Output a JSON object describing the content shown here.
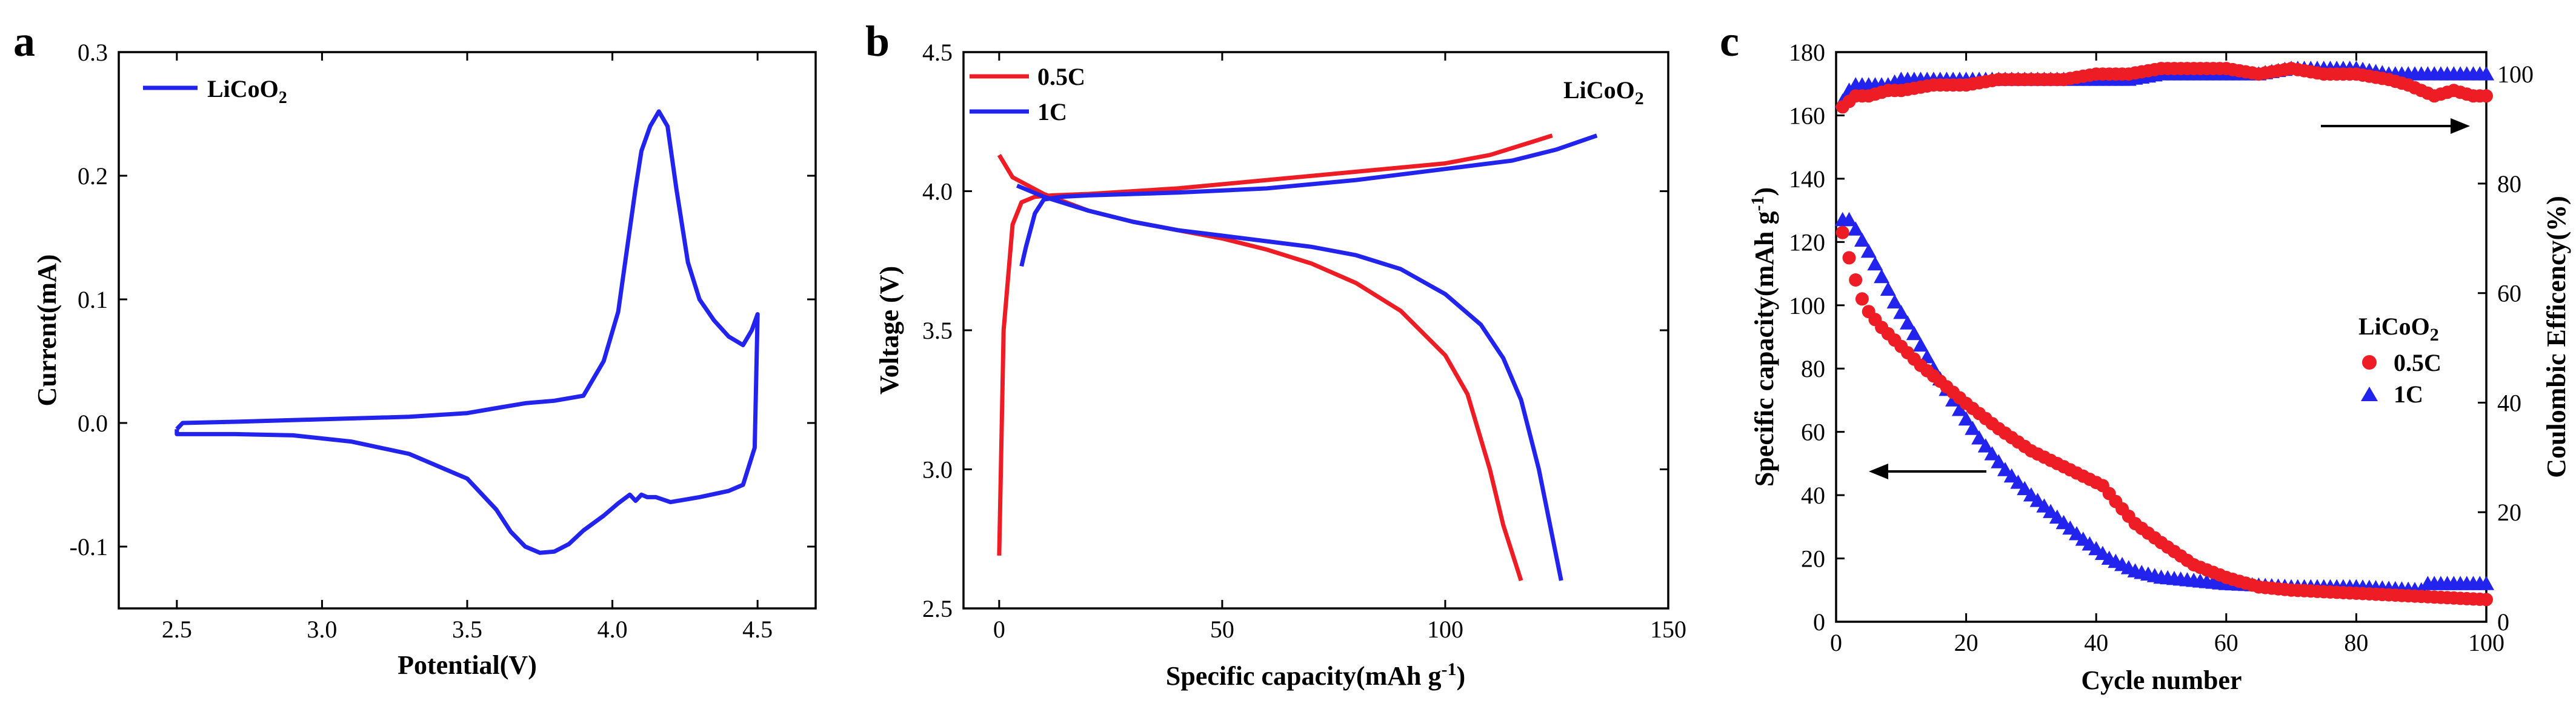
{
  "colors": {
    "red": "#ee1c25",
    "blue": "#2323ee",
    "axis": "#000000"
  },
  "chart_data": [
    {
      "panel": "a",
      "type": "line",
      "xlabel": "Potential(V)",
      "ylabel": "Current(mA)",
      "xlim": [
        2.3,
        4.7
      ],
      "ylim": [
        -0.15,
        0.3
      ],
      "xticks": [
        2.5,
        3.0,
        3.5,
        4.0,
        4.5
      ],
      "xtick_labels": [
        "2.5",
        "3.0",
        "3.5",
        "4.0",
        "4.5"
      ],
      "yticks": [
        -0.1,
        0.0,
        0.1,
        0.2,
        0.3
      ],
      "ytick_labels": [
        "-0.1",
        "0.0",
        "0.1",
        "0.2",
        "0.3"
      ],
      "legend": [
        "LiCoO2"
      ],
      "legend_base": "LiCoO",
      "legend_sub": "2",
      "series": [
        {
          "name": "LiCoO2",
          "color": "blue",
          "x": [
            2.5,
            2.52,
            2.7,
            3.0,
            3.3,
            3.5,
            3.6,
            3.7,
            3.8,
            3.9,
            3.97,
            4.02,
            4.05,
            4.08,
            4.1,
            4.13,
            4.16,
            4.19,
            4.22,
            4.26,
            4.3,
            4.35,
            4.4,
            4.45,
            4.48,
            4.5,
            4.49,
            4.45,
            4.4,
            4.3,
            4.2,
            4.15,
            4.12,
            4.1,
            4.08,
            4.06,
            4.02,
            3.97,
            3.9,
            3.85,
            3.8,
            3.75,
            3.7,
            3.65,
            3.6,
            3.5,
            3.3,
            3.1,
            2.9,
            2.7,
            2.5,
            2.5
          ],
          "y": [
            -0.005,
            0.0,
            0.001,
            0.003,
            0.005,
            0.008,
            0.012,
            0.016,
            0.018,
            0.022,
            0.05,
            0.09,
            0.14,
            0.19,
            0.22,
            0.24,
            0.252,
            0.24,
            0.19,
            0.13,
            0.1,
            0.083,
            0.07,
            0.063,
            0.075,
            0.088,
            -0.02,
            -0.05,
            -0.055,
            -0.06,
            -0.064,
            -0.06,
            -0.06,
            -0.058,
            -0.063,
            -0.058,
            -0.065,
            -0.075,
            -0.087,
            -0.098,
            -0.104,
            -0.105,
            -0.1,
            -0.088,
            -0.07,
            -0.045,
            -0.025,
            -0.015,
            -0.01,
            -0.009,
            -0.009,
            -0.005
          ]
        }
      ]
    },
    {
      "panel": "b",
      "type": "line",
      "xlabel": "Specific capacity(mAh g-1)",
      "xlabel_base": "Specific capacity(mAh g",
      "xlabel_sup": "-1",
      "xlabel_end": ")",
      "ylabel": "Voltage (V)",
      "xlim": [
        -8,
        150
      ],
      "ylim": [
        2.5,
        4.5
      ],
      "xticks": [
        0,
        50,
        100,
        150
      ],
      "xtick_labels": [
        "0",
        "50",
        "100",
        "150"
      ],
      "yticks": [
        2.5,
        3.0,
        3.5,
        4.0,
        4.5
      ],
      "ytick_labels": [
        "2.5",
        "3.0",
        "3.5",
        "4.0",
        "4.5"
      ],
      "annotation_base": "LiCoO",
      "annotation_sub": "2",
      "legend": [
        "0.5C",
        "1C"
      ],
      "series": [
        {
          "name": "0.5C charge",
          "color": "red",
          "x": [
            0,
            1,
            3,
            5,
            8,
            12,
            20,
            40,
            60,
            80,
            100,
            110,
            118,
            124
          ],
          "y": [
            2.69,
            3.5,
            3.88,
            3.96,
            3.98,
            3.985,
            3.99,
            4.01,
            4.04,
            4.07,
            4.1,
            4.13,
            4.17,
            4.2
          ]
        },
        {
          "name": "0.5C discharge",
          "color": "red",
          "x": [
            0,
            3,
            10,
            20,
            30,
            40,
            50,
            60,
            70,
            80,
            90,
            100,
            105,
            110,
            113,
            117
          ],
          "y": [
            4.13,
            4.05,
            3.99,
            3.93,
            3.89,
            3.86,
            3.83,
            3.79,
            3.74,
            3.67,
            3.57,
            3.41,
            3.27,
            3.0,
            2.8,
            2.6
          ]
        },
        {
          "name": "1C charge",
          "color": "blue",
          "x": [
            5,
            6,
            8,
            10,
            14,
            20,
            40,
            60,
            80,
            100,
            115,
            125,
            134
          ],
          "y": [
            3.73,
            3.8,
            3.92,
            3.97,
            3.98,
            3.985,
            3.995,
            4.01,
            4.04,
            4.08,
            4.11,
            4.15,
            4.2
          ]
        },
        {
          "name": "1C discharge",
          "color": "blue",
          "x": [
            4,
            10,
            20,
            30,
            40,
            50,
            60,
            70,
            80,
            90,
            100,
            108,
            113,
            117,
            121,
            126
          ],
          "y": [
            4.02,
            3.98,
            3.93,
            3.89,
            3.86,
            3.84,
            3.82,
            3.8,
            3.77,
            3.72,
            3.63,
            3.52,
            3.4,
            3.25,
            3.0,
            2.6
          ]
        }
      ]
    },
    {
      "panel": "c",
      "type": "scatter",
      "xlabel": "Cycle number",
      "ylabel": "Specific capacity(mAh g-1)",
      "ylabel_base": "Specific capacity(mAh g",
      "ylabel_sup": "-1",
      "ylabel_end": ")",
      "y2label": "Coulombic Efficency(%)",
      "xlim": [
        0,
        100
      ],
      "ylim": [
        0,
        180
      ],
      "y2lim": [
        0,
        104
      ],
      "xticks": [
        0,
        20,
        40,
        60,
        80,
        100
      ],
      "xtick_labels": [
        "0",
        "20",
        "40",
        "60",
        "80",
        "100"
      ],
      "yticks": [
        0,
        20,
        40,
        60,
        80,
        100,
        120,
        140,
        160,
        180
      ],
      "ytick_labels": [
        "0",
        "20",
        "40",
        "60",
        "80",
        "100",
        "120",
        "140",
        "160",
        "180"
      ],
      "y2ticks": [
        0,
        20,
        40,
        60,
        80,
        100
      ],
      "y2tick_labels": [
        "0",
        "20",
        "40",
        "60",
        "80",
        "100"
      ],
      "legend_title_base": "LiCoO",
      "legend_title_sub": "2",
      "legend": [
        "0.5C",
        "1C"
      ],
      "capacity_0_5C": {
        "x": [
          1,
          2,
          3,
          4,
          5,
          7,
          10,
          13,
          16,
          20,
          25,
          30,
          35,
          38,
          41,
          43,
          46,
          50,
          55,
          60,
          65,
          70,
          80,
          90,
          100
        ],
        "y": [
          123,
          115,
          108,
          102,
          98,
          93,
          87,
          81,
          76,
          69,
          61,
          54,
          49,
          46,
          43,
          38,
          31,
          25,
          18,
          14,
          11,
          10,
          9,
          8,
          7
        ]
      },
      "capacity_1C": {
        "x": [
          1,
          2,
          3,
          5,
          7,
          9,
          12,
          15,
          18,
          22,
          26,
          30,
          34,
          38,
          42,
          46,
          50,
          55,
          60,
          70,
          80,
          90,
          91,
          95,
          100
        ],
        "y": [
          127,
          127,
          124,
          117,
          109,
          101,
          91,
          80,
          70,
          58,
          48,
          40,
          33,
          26,
          20,
          16,
          14,
          13,
          12,
          11,
          11,
          10,
          12,
          12,
          12
        ]
      },
      "efficiency_0_5C": {
        "x": [
          1,
          2,
          3,
          5,
          8,
          10,
          15,
          20,
          25,
          30,
          35,
          40,
          45,
          50,
          55,
          60,
          65,
          70,
          75,
          80,
          85,
          88,
          90,
          92,
          95,
          98,
          100
        ],
        "y": [
          94,
          95,
          96,
          96,
          97,
          97,
          98,
          98,
          99,
          99,
          99,
          100,
          100,
          101,
          101,
          101,
          100,
          101,
          100,
          100,
          99,
          98,
          97,
          96,
          97,
          96,
          96
        ]
      },
      "efficiency_1C": {
        "x": [
          1,
          2,
          3,
          5,
          8,
          10,
          15,
          20,
          25,
          30,
          35,
          40,
          45,
          50,
          55,
          60,
          65,
          70,
          75,
          80,
          85,
          90,
          95,
          100
        ],
        "y": [
          95,
          97,
          98,
          98,
          98,
          99,
          99,
          99,
          99,
          99,
          99,
          99,
          99,
          100,
          100,
          100,
          100,
          101,
          101,
          101,
          100,
          100,
          100,
          100
        ]
      }
    }
  ]
}
